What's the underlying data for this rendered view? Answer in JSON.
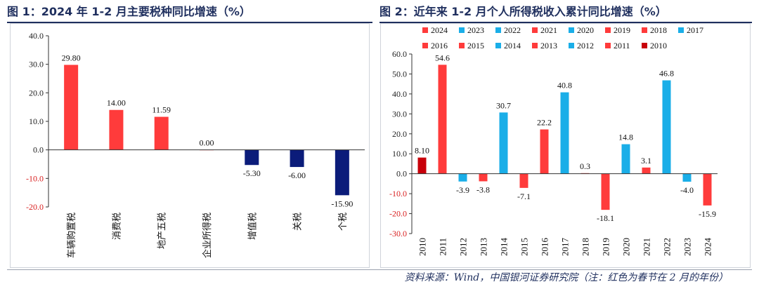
{
  "figure1": {
    "title": "图 1：2024 年 1-2 月主要税种同比增速（%）"
  },
  "figure2": {
    "title": "图 2：近年来 1-2 月个人所得税收入累计同比增速（%）"
  },
  "source_note": "资料来源：Wind，中国银河证券研究院（注：红色为春节在 2 月的年份）",
  "colors": {
    "red": "#ff3b3b",
    "navy": "#0b1c7a",
    "cyan": "#1aaee8",
    "dark_red": "#c8000a",
    "axis_red": "#d92020",
    "title": "#1f2f5e"
  },
  "chart_data": [
    {
      "type": "bar",
      "title": "图 1：2024 年 1-2 月主要税种同比增速（%）",
      "categories": [
        "车辆购置税",
        "消费税",
        "地产五税",
        "企业所得税",
        "增值税",
        "关税",
        "个税"
      ],
      "values": [
        29.8,
        14.0,
        11.59,
        0.0,
        -5.3,
        -6.0,
        -15.9
      ],
      "data_labels": [
        "29.80",
        "14.00",
        "11.59",
        "0.00",
        "-5.30",
        "-6.00",
        "-15.90"
      ],
      "bar_colors": [
        "red",
        "red",
        "red",
        "red",
        "navy",
        "navy",
        "navy"
      ],
      "ylim": [
        -20,
        40
      ],
      "yticks": [
        "40.0",
        "30.0",
        "20.0",
        "10.0",
        "0.0",
        "-10.0",
        "-20.0"
      ],
      "ytick_values": [
        40,
        30,
        20,
        10,
        0,
        -10,
        -20
      ],
      "grid": false,
      "legend": "none"
    },
    {
      "type": "bar",
      "title": "图 2：近年来 1-2 月个人所得税收入累计同比增速（%）",
      "categories": [
        "2010",
        "2011",
        "2012",
        "2013",
        "2014",
        "2015",
        "2016",
        "2017",
        "2018",
        "2019",
        "2020",
        "2021",
        "2022",
        "2023",
        "2024"
      ],
      "values": [
        8.1,
        54.6,
        -3.9,
        -3.8,
        30.7,
        -7.1,
        22.2,
        40.8,
        0.3,
        -18.1,
        14.8,
        3.1,
        46.8,
        -4.0,
        -15.9
      ],
      "data_labels": [
        "8.10",
        "54.6",
        "-3.9",
        "-3.8",
        "30.7",
        "-7.1",
        "22.2",
        "40.8",
        "0.3",
        "-18.1",
        "14.8",
        "3.1",
        "46.8",
        "-4.0",
        "-15.9"
      ],
      "bar_colors": [
        "dark_red",
        "red",
        "cyan",
        "red",
        "cyan",
        "red",
        "red",
        "cyan",
        "red",
        "red",
        "cyan",
        "red",
        "cyan",
        "cyan",
        "red"
      ],
      "ylim": [
        -30,
        60
      ],
      "yticks": [
        "60.0",
        "50.0",
        "40.0",
        "30.0",
        "20.0",
        "10.0",
        "0.0",
        "-10.0",
        "-20.0",
        "-30.0"
      ],
      "ytick_values": [
        60,
        50,
        40,
        30,
        20,
        10,
        0,
        -10,
        -20,
        -30
      ],
      "legend_entries": [
        "2024",
        "2023",
        "2022",
        "2021",
        "2020",
        "2019",
        "2018",
        "2017",
        "2016",
        "2015",
        "2014",
        "2013",
        "2012",
        "2011",
        "2010"
      ],
      "legend_colors": [
        "red",
        "cyan",
        "cyan",
        "red",
        "cyan",
        "red",
        "red",
        "cyan",
        "red",
        "red",
        "cyan",
        "red",
        "cyan",
        "red",
        "dark_red"
      ],
      "legend_position": "top",
      "grid": false
    }
  ]
}
